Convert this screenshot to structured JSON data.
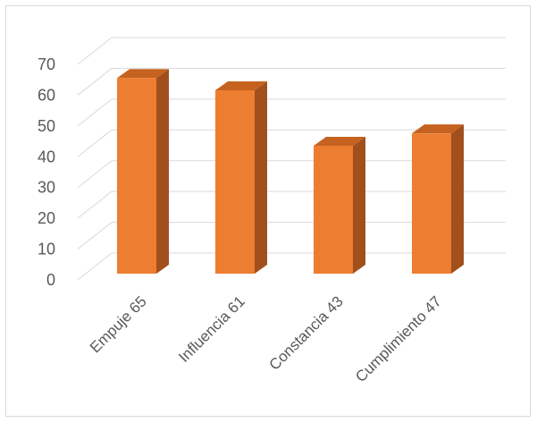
{
  "chart_data": {
    "type": "bar",
    "categories": [
      "Empuje 65",
      "Influencia 61",
      "Constancia 43",
      "Cumplimiento 47"
    ],
    "values": [
      65,
      61,
      43,
      47
    ],
    "ylim": [
      0,
      70
    ],
    "yticks": [
      0,
      10,
      20,
      30,
      40,
      50,
      60,
      70
    ],
    "grid": true,
    "three_d": true,
    "colors": {
      "front": "#ED7D31",
      "side": "#A14F1C",
      "top": "#C5621F",
      "grid": "#d9d9d9",
      "text": "#595959"
    }
  }
}
